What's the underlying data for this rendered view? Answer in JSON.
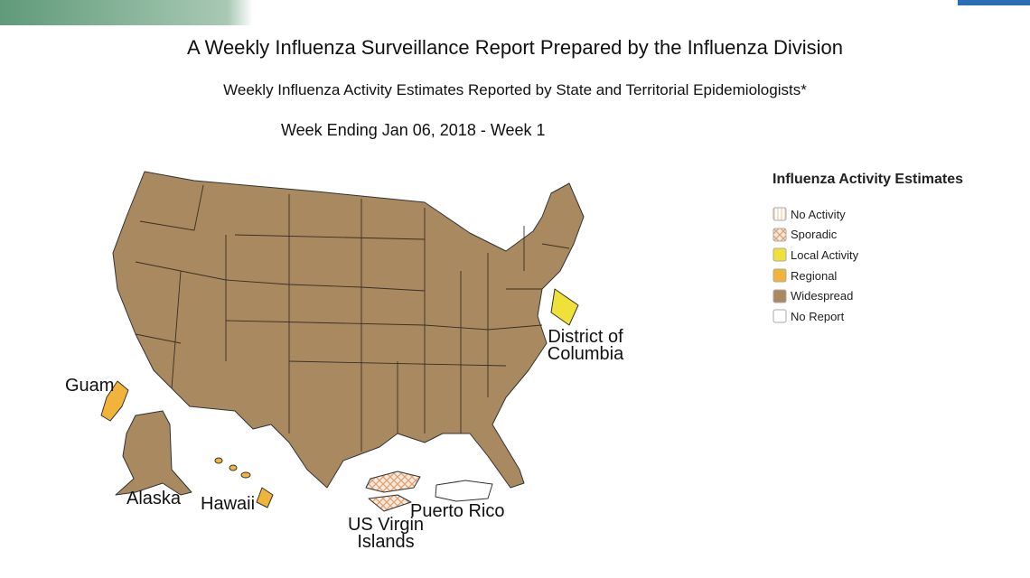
{
  "header": {
    "title": "A Weekly Influenza Surveillance Report Prepared by the Influenza Division",
    "subtitle": "Weekly Influenza Activity Estimates Reported by State and Territorial Epidemiologists*",
    "week": "Week Ending Jan 06, 2018 - Week 1"
  },
  "legend": {
    "title": "Influenza Activity Estimates",
    "items": [
      {
        "label": "No Activity",
        "color": "#f3c9a8",
        "pattern": "stripes"
      },
      {
        "label": "Sporadic",
        "color": "#d9a27a",
        "pattern": "crosshatch"
      },
      {
        "label": "Local Activity",
        "color": "#f0e03a"
      },
      {
        "label": "Regional",
        "color": "#f0b43a"
      },
      {
        "label": "Widespread",
        "color": "#a88960"
      },
      {
        "label": "No Report",
        "color": "#ffffff"
      }
    ]
  },
  "map": {
    "labels": [
      "District of Columbia",
      "Guam",
      "Alaska",
      "Hawaii",
      "US Virgin Islands",
      "Puerto Rico"
    ]
  }
}
